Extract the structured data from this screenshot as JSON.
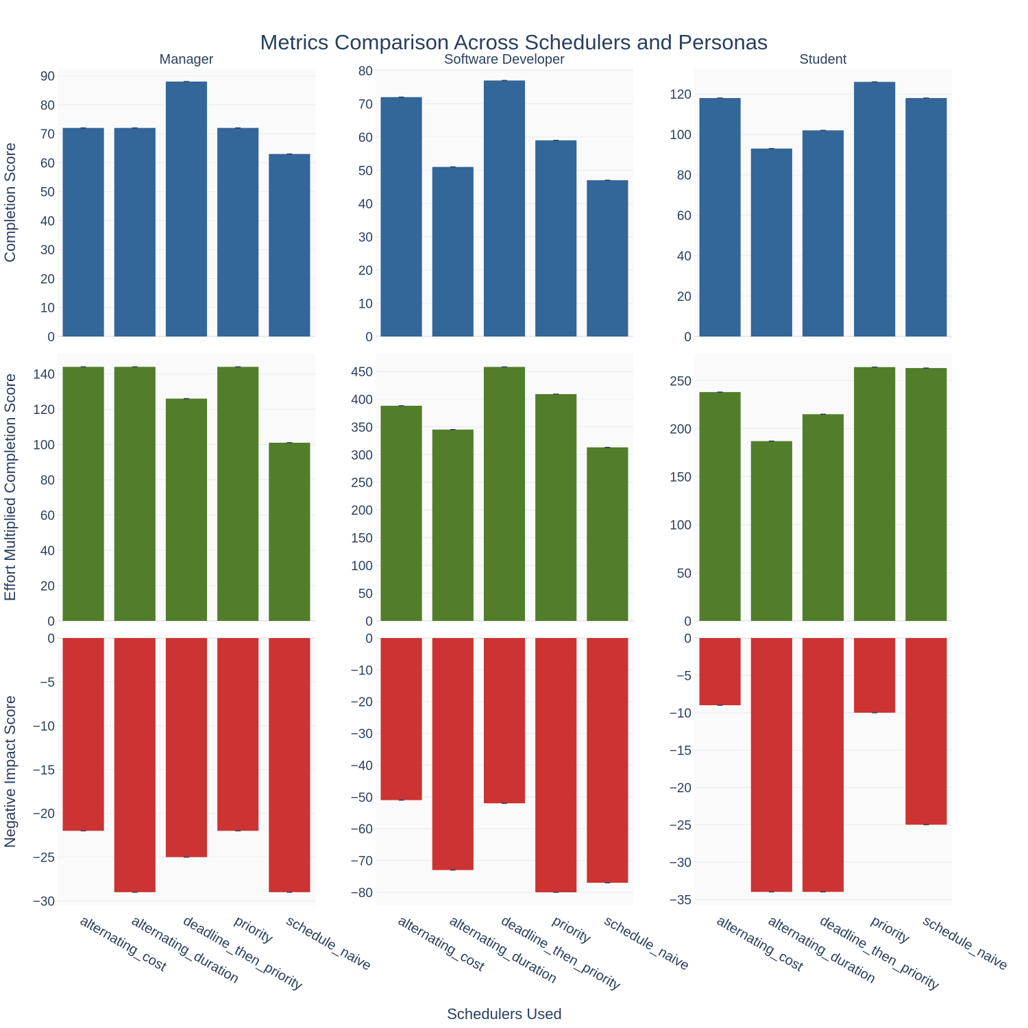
{
  "chart_data": {
    "type": "bar",
    "title": "Metrics Comparison Across Schedulers and Personas",
    "xlabel": "Schedulers Used",
    "categories": [
      "alternating_cost",
      "alternating_duration",
      "deadline_then_priority",
      "priority",
      "schedule_naive"
    ],
    "personas": [
      "Manager",
      "Software Developer",
      "Student"
    ],
    "grid": true,
    "rows": [
      {
        "metric": "Completion Score",
        "color": "#336699",
        "panels": [
          {
            "persona": "Manager",
            "values": [
              72,
              72,
              88,
              72,
              63
            ],
            "ylim": [
              0,
              92.5
            ],
            "ticks": [
              0,
              10,
              20,
              30,
              40,
              50,
              60,
              70,
              80,
              90
            ]
          },
          {
            "persona": "Software Developer",
            "values": [
              72,
              51,
              77,
              59,
              47
            ],
            "ylim": [
              0,
              80.6
            ],
            "ticks": [
              0,
              10,
              20,
              30,
              40,
              50,
              60,
              70,
              80
            ]
          },
          {
            "persona": "Student",
            "values": [
              118,
              93,
              102,
              126,
              118
            ],
            "ylim": [
              0,
              132.6
            ],
            "ticks": [
              0,
              20,
              40,
              60,
              80,
              100,
              120
            ]
          }
        ]
      },
      {
        "metric": "Effort Multiplied Completion Score",
        "color": "#527d2b",
        "panels": [
          {
            "persona": "Manager",
            "values": [
              144,
              144,
              126,
              144,
              101
            ],
            "ylim": [
              0,
              151.5
            ],
            "ticks": [
              0,
              20,
              40,
              60,
              80,
              100,
              120,
              140
            ]
          },
          {
            "persona": "Software Developer",
            "values": [
              388,
              345,
              458,
              409,
              313
            ],
            "ylim": [
              0,
              482
            ],
            "ticks": [
              0,
              50,
              100,
              150,
              200,
              250,
              300,
              350,
              400,
              450
            ]
          },
          {
            "persona": "Student",
            "values": [
              238,
              187,
              215,
              264,
              263
            ],
            "ylim": [
              0,
              278
            ],
            "ticks": [
              0,
              50,
              100,
              150,
              200,
              250
            ]
          }
        ]
      },
      {
        "metric": "Negative Impact Score",
        "color": "#cc3333",
        "panels": [
          {
            "persona": "Manager",
            "values": [
              -22,
              -29,
              -25,
              -22,
              -29
            ],
            "ylim": [
              -30.5,
              0
            ],
            "ticks": [
              0,
              -5,
              -10,
              -15,
              -20,
              -25,
              -30
            ]
          },
          {
            "persona": "Software Developer",
            "values": [
              -51,
              -73,
              -52,
              -80,
              -77
            ],
            "ylim": [
              -84.1,
              0
            ],
            "ticks": [
              0,
              -10,
              -20,
              -30,
              -40,
              -50,
              -60,
              -70,
              -80
            ]
          },
          {
            "persona": "Student",
            "values": [
              -9,
              -34,
              -34,
              -10,
              -25
            ],
            "ylim": [
              -35.8,
              0
            ],
            "ticks": [
              0,
              -5,
              -10,
              -15,
              -20,
              -25,
              -30,
              -35
            ]
          }
        ]
      }
    ]
  }
}
